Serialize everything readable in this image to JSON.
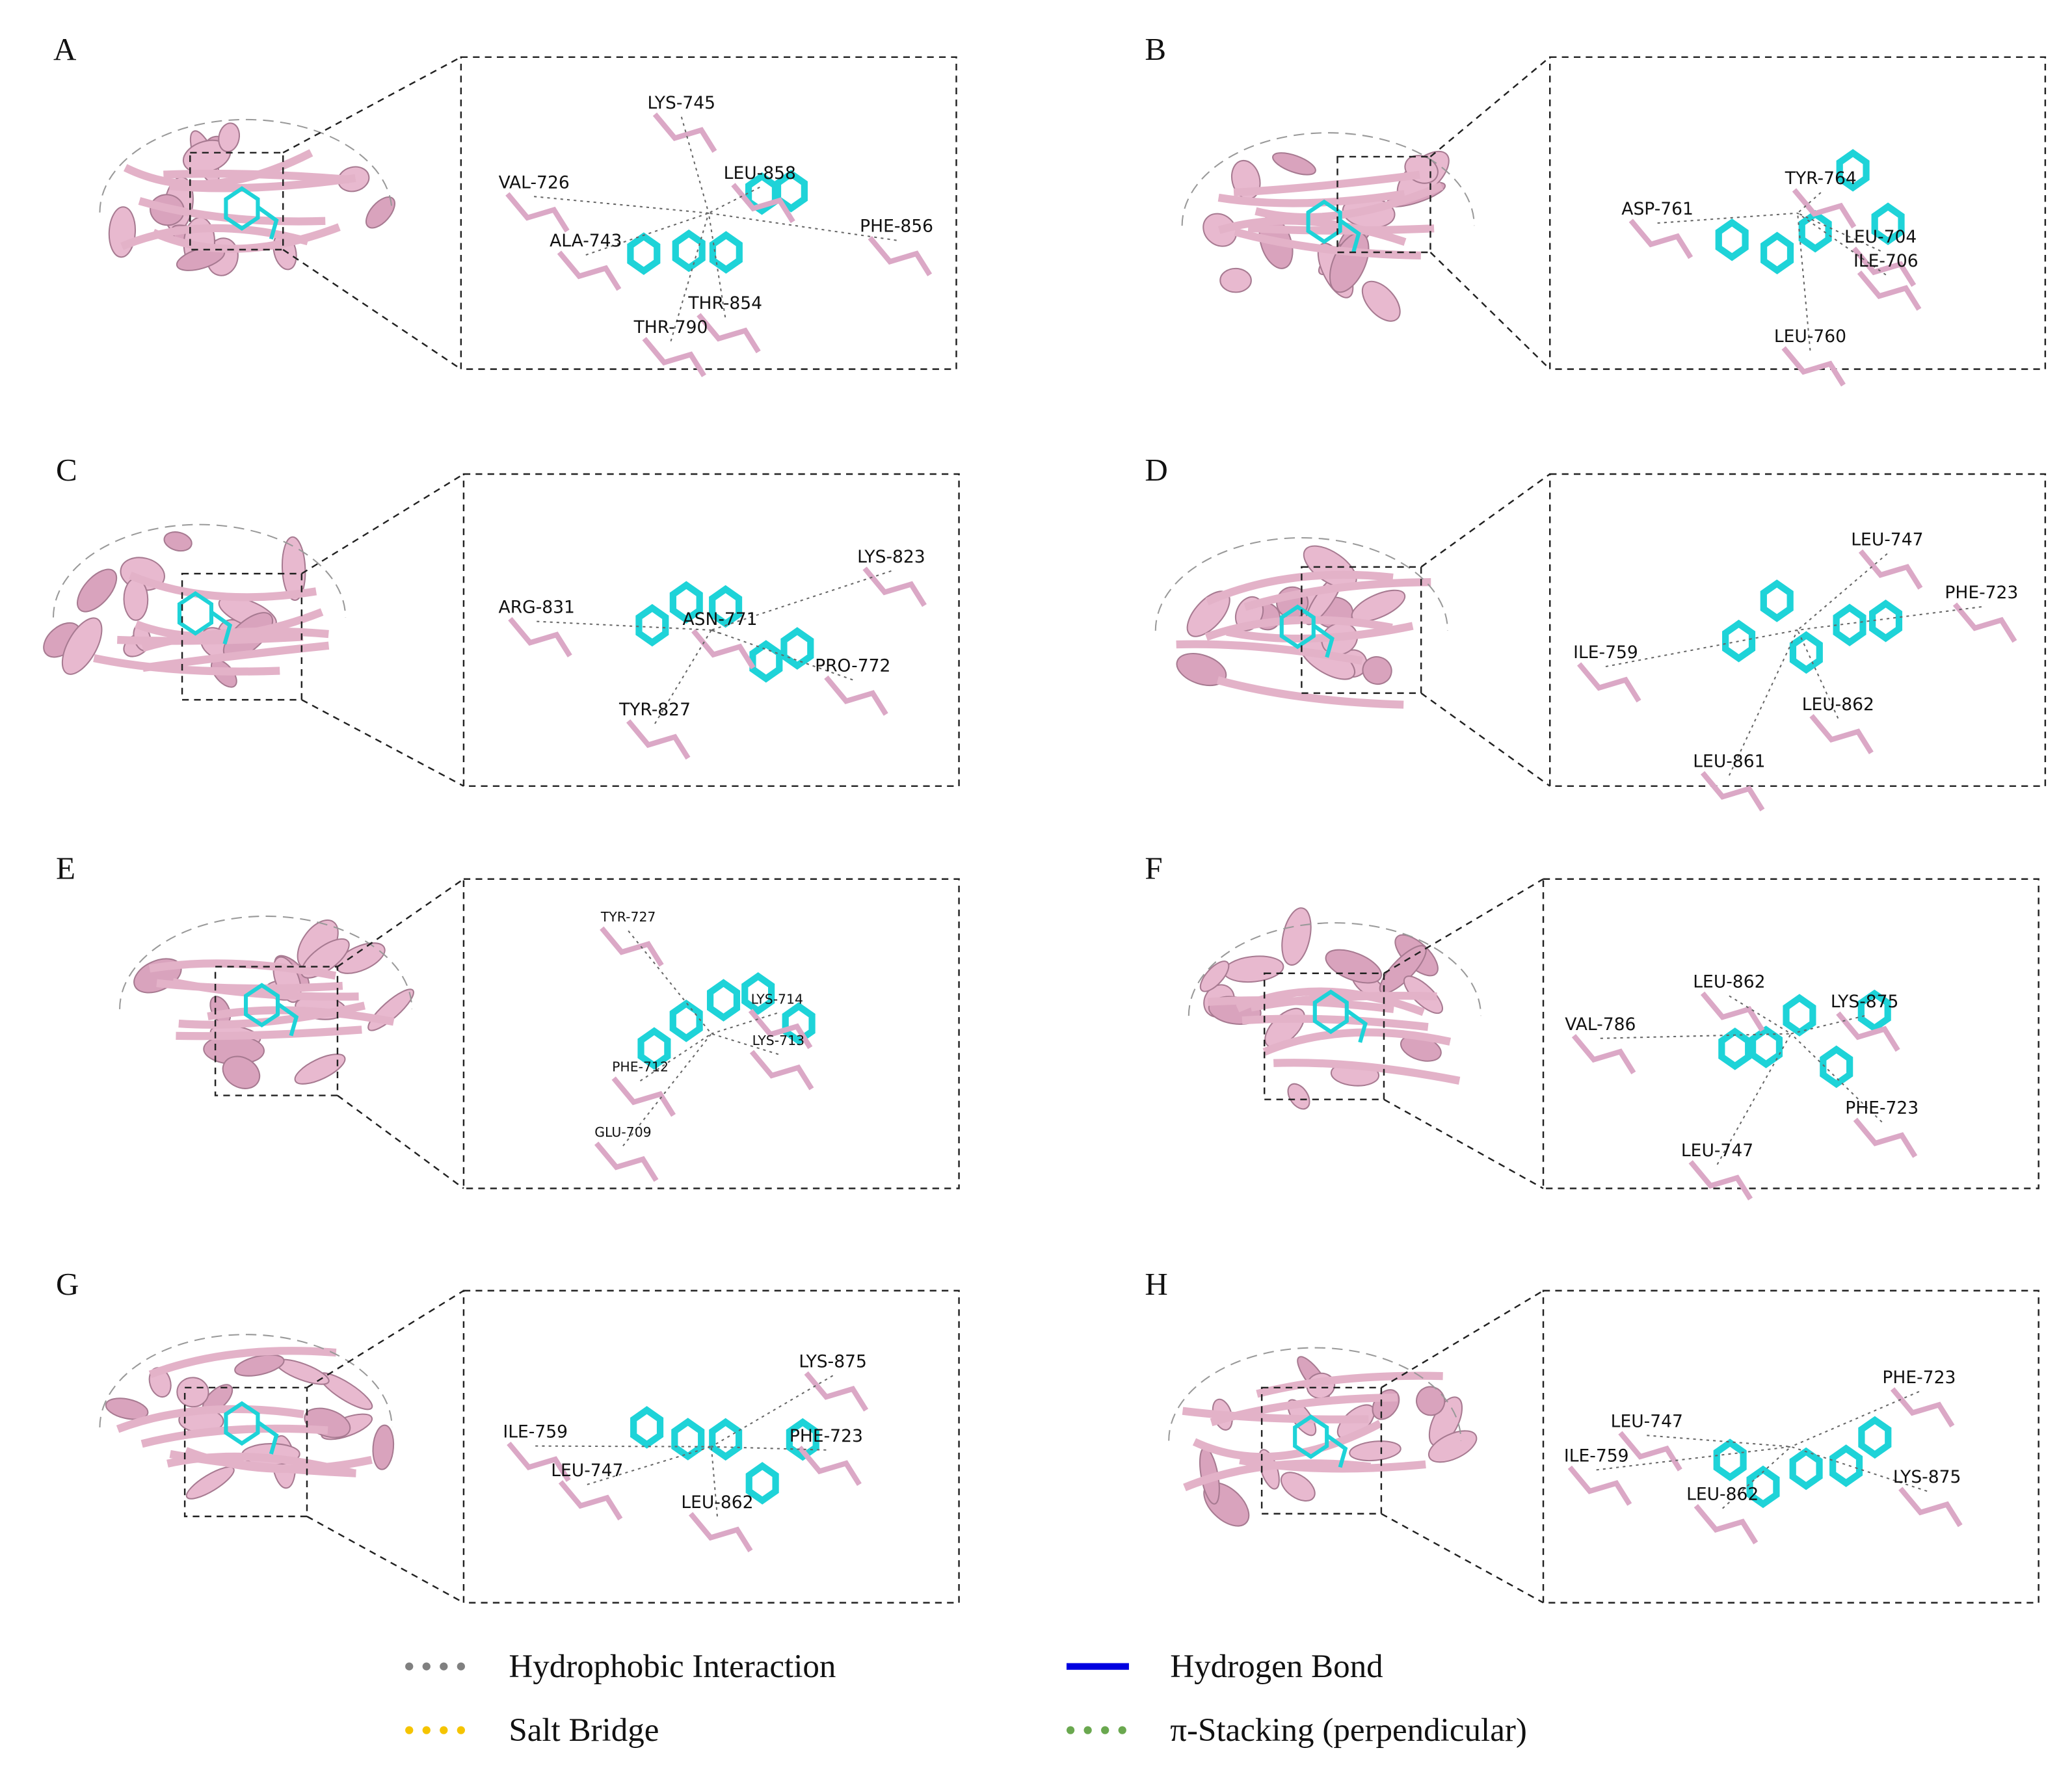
{
  "panels": [
    {
      "label": "A",
      "residues": [
        "LYS-745",
        "VAL-726",
        "LEU-858",
        "PHE-856",
        "ALA-743",
        "THR-854",
        "THR-790"
      ]
    },
    {
      "label": "B",
      "residues": [
        "TYR-764",
        "ASP-761",
        "LEU-704",
        "ILE-706",
        "LEU-760"
      ]
    },
    {
      "label": "C",
      "residues": [
        "LYS-823",
        "ARG-831",
        "ASN-771",
        "PRO-772",
        "TYR-827"
      ]
    },
    {
      "label": "D",
      "residues": [
        "LEU-747",
        "PHE-723",
        "ILE-759",
        "LEU-862",
        "LEU-861"
      ]
    },
    {
      "label": "E",
      "residues": [
        "TYR-727",
        "LYS-714",
        "LYS-713",
        "PHE-712",
        "GLU-709"
      ]
    },
    {
      "label": "F",
      "residues": [
        "LYS-875",
        "LEU-862",
        "VAL-786",
        "PHE-723",
        "LEU-747"
      ]
    },
    {
      "label": "G",
      "residues": [
        "LYS-875",
        "ILE-759",
        "PHE-723",
        "LEU-747",
        "LEU-862"
      ]
    },
    {
      "label": "H",
      "residues": [
        "PHE-723",
        "LEU-747",
        "ILE-759",
        "LEU-862",
        "LYS-875"
      ]
    }
  ],
  "legend": [
    {
      "label": "Hydrophobic Interaction",
      "style": "dots",
      "color": "#808080"
    },
    {
      "label": "Hydrogen Bond",
      "style": "line",
      "color": "#0000e0"
    },
    {
      "label": "Salt Bridge",
      "style": "dots",
      "color": "#f5c400"
    },
    {
      "label": "π-Stacking (perpendicular)",
      "style": "dots",
      "color": "#6aa84f"
    }
  ]
}
